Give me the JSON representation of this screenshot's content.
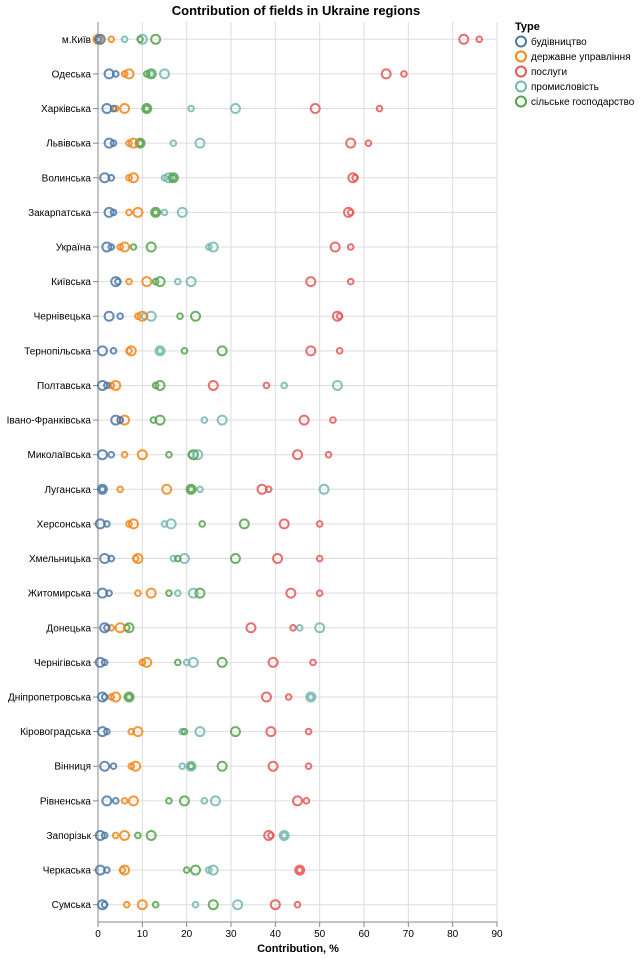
{
  "chart_data": {
    "type": "scatter",
    "title": "Contribution of fields in Ukraine regions",
    "xlabel": "Contribution, %",
    "ylabel": "",
    "xlim": [
      0,
      90
    ],
    "xticks": [
      "0",
      "10",
      "20",
      "30",
      "40",
      "50",
      "60",
      "70",
      "80",
      "90"
    ],
    "grid": true,
    "legend": {
      "title": "Type",
      "position": "top-right",
      "entries": [
        {
          "key": "b",
          "label": "будівництво",
          "color": "#4c78a8"
        },
        {
          "key": "d",
          "label": "державне управління",
          "color": "#f58518"
        },
        {
          "key": "p",
          "label": "послуги",
          "color": "#e45756"
        },
        {
          "key": "m",
          "label": "промисловість",
          "color": "#72b7b2"
        },
        {
          "key": "s",
          "label": "сільське господарство",
          "color": "#54a24b"
        }
      ]
    },
    "regions": [
      "м.Київ",
      "Одеська",
      "Харківська",
      "Львівська",
      "Волинська",
      "Закарпатська",
      "Україна",
      "Київська",
      "Чернівецька",
      "Тернопільська",
      "Полтавська",
      "Івано-Франківська",
      "Миколаївська",
      "Луганська",
      "Херсонська",
      "Хмельницька",
      "Житомирська",
      "Донецька",
      "Чернігівська",
      "Дніпропетровська",
      "Кіровоградська",
      "Вінниця",
      "Рівненська",
      "Запорізьк",
      "Черкаська",
      "Сумська"
    ],
    "points": [
      [
        [
          0,
          -0.5
        ],
        [
          3,
          0
        ],
        [
          82.5,
          86
        ]
      ],
      [
        [
          0,
          3
        ],
        [
          6,
          7
        ],
        [
          65,
          69
        ]
      ],
      [
        [
          0,
          -1
        ],
        [
          4,
          6
        ],
        [
          49,
          63.5
        ]
      ],
      [
        [
          0,
          2
        ],
        [
          7,
          8
        ],
        [
          57,
          61
        ]
      ],
      [
        [
          0,
          1
        ],
        [
          7,
          8
        ],
        [
          57.5,
          58
        ]
      ],
      [
        [
          0,
          1
        ],
        [
          7,
          9
        ],
        [
          56.5,
          57
        ]
      ],
      [
        [
          0,
          1
        ],
        [
          5,
          6
        ],
        [
          53.5,
          57
        ]
      ],
      [
        [
          0,
          2
        ],
        [
          7,
          11
        ],
        [
          48,
          57
        ]
      ],
      [
        [
          0,
          3
        ],
        [
          9,
          10
        ],
        [
          54,
          54.5
        ]
      ],
      [
        [
          0,
          1
        ],
        [
          7,
          7.5
        ],
        [
          48,
          54.5
        ]
      ],
      [
        [
          0,
          1
        ],
        [
          3,
          4
        ],
        [
          26,
          38
        ]
      ],
      [
        [
          0,
          2
        ],
        [
          5,
          6
        ],
        [
          46.5,
          53
        ]
      ],
      [
        [
          0,
          1
        ],
        [
          6,
          10
        ],
        [
          45,
          52
        ]
      ],
      [
        [
          0,
          1
        ],
        [
          5,
          15.5
        ],
        [
          37,
          38.5
        ]
      ],
      [
        [
          0,
          1
        ],
        [
          7,
          8
        ],
        [
          42,
          50
        ]
      ],
      [
        [
          0,
          1
        ],
        [
          8.5,
          9
        ],
        [
          40.5,
          50
        ]
      ],
      [
        [
          0,
          1
        ],
        [
          9,
          12
        ],
        [
          43.5,
          50
        ]
      ],
      [
        [
          0,
          2
        ],
        [
          3,
          5
        ],
        [
          34.5,
          44
        ]
      ],
      [
        [
          0,
          1
        ],
        [
          10,
          11
        ],
        [
          39.5,
          48.5
        ]
      ],
      [
        [
          0,
          1
        ],
        [
          3,
          4
        ],
        [
          38,
          43
        ]
      ],
      [
        [
          0,
          1
        ],
        [
          7.5,
          9
        ],
        [
          39,
          47.5
        ]
      ],
      [
        [
          0,
          1
        ],
        [
          7.5,
          8.5
        ],
        [
          39.5,
          47.5
        ]
      ],
      [
        [
          0,
          2
        ],
        [
          6,
          8
        ],
        [
          45,
          47
        ]
      ],
      [
        [
          0,
          1
        ],
        [
          4,
          6
        ],
        [
          38.5,
          39
        ]
      ],
      [
        [
          0,
          1
        ],
        [
          5.5,
          6
        ],
        [
          45.5,
          45.5
        ]
      ],
      [
        [
          0,
          1
        ],
        [
          6.5,
          10
        ],
        [
          40,
          45
        ]
      ]
    ],
    "point_types": [
      "b",
      "d",
      "p"
    ],
    "extra_points": [
      [
        [
          6,
          10
        ],
        [
          9.5,
          13
        ]
      ],
      [
        [
          12,
          15
        ],
        [
          11,
          12
        ]
      ],
      [
        [
          21,
          31
        ],
        [
          11,
          11
        ]
      ],
      [
        [
          17,
          23
        ],
        [
          9.5,
          9.5
        ]
      ],
      [
        [
          15,
          16
        ],
        [
          17,
          17
        ]
      ],
      [
        [
          15,
          19
        ],
        [
          13,
          13
        ]
      ],
      [
        [
          25,
          26
        ],
        [
          8,
          12
        ]
      ],
      [
        [
          18,
          21
        ],
        [
          13,
          14
        ]
      ],
      [
        [
          10.5,
          12
        ],
        [
          18.5,
          22
        ]
      ],
      [
        [
          14,
          14
        ],
        [
          19.5,
          28
        ]
      ],
      [
        [
          42,
          54
        ],
        [
          13,
          14
        ]
      ],
      [
        [
          24,
          28
        ],
        [
          12.5,
          14
        ]
      ],
      [
        [
          21,
          22.5
        ],
        [
          16,
          21.5
        ]
      ],
      [
        [
          23,
          51
        ],
        [
          21,
          21
        ]
      ],
      [
        [
          15,
          16.5
        ],
        [
          23.5,
          33
        ]
      ],
      [
        [
          17,
          19.5
        ],
        [
          18,
          31
        ]
      ],
      [
        [
          18,
          21.5
        ],
        [
          16,
          23
        ]
      ],
      [
        [
          45.5,
          50
        ],
        [
          6.5,
          7
        ]
      ],
      [
        [
          20,
          21.5
        ],
        [
          18,
          28
        ]
      ],
      [
        [
          48,
          48
        ],
        [
          7,
          7
        ]
      ],
      [
        [
          19,
          23
        ],
        [
          19.5,
          31
        ]
      ],
      [
        [
          19,
          21
        ],
        [
          21,
          28
        ]
      ],
      [
        [
          24,
          26.5
        ],
        [
          16,
          19.5
        ]
      ],
      [
        [
          42,
          42
        ],
        [
          9,
          12
        ]
      ],
      [
        [
          25,
          26
        ],
        [
          20,
          22
        ]
      ],
      [
        [
          22,
          31.5
        ],
        [
          13,
          26
        ]
      ]
    ],
    "extra_types": [
      "m",
      "s"
    ],
    "build": [
      [
        -0.5,
        0
      ],
      [
        2.5,
        4
      ],
      [
        2,
        3.5
      ],
      [
        2.5,
        3.5
      ],
      [
        1.5,
        3
      ],
      [
        2.5,
        3.5
      ],
      [
        2,
        3
      ],
      [
        4,
        4.5
      ],
      [
        2.5,
        5
      ],
      [
        1,
        3.5
      ],
      [
        1,
        2
      ],
      [
        4,
        5
      ],
      [
        1,
        3
      ],
      [
        1,
        1
      ],
      [
        0.5,
        2
      ],
      [
        1.5,
        3
      ],
      [
        1,
        2.5
      ],
      [
        1.5,
        2
      ],
      [
        0.5,
        1.5
      ],
      [
        1,
        1.5
      ],
      [
        1,
        2
      ],
      [
        1.5,
        3.5
      ],
      [
        2,
        4
      ],
      [
        0.5,
        1.5
      ],
      [
        0.5,
        2
      ],
      [
        1,
        1.5
      ]
    ]
  }
}
